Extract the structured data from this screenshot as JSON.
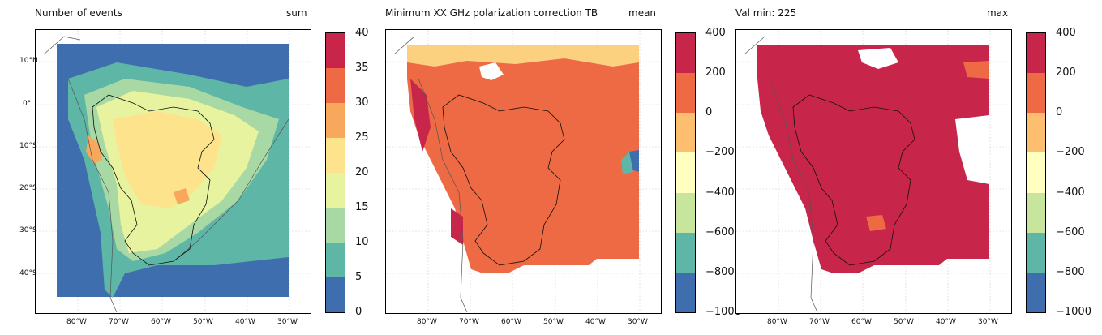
{
  "panels": [
    {
      "left_title": "Number of events",
      "right_title": "sum",
      "colorbar_ticks": [
        "40",
        "35",
        "30",
        "25",
        "20",
        "15",
        "10",
        "5",
        "0"
      ],
      "colorbar_colors": [
        "#c7264a",
        "#ee6a44",
        "#f7a85c",
        "#fde38b",
        "#e8f3a0",
        "#a8d8a3",
        "#5eb6a6",
        "#3f6eaf"
      ],
      "lat_ticks": [
        "10°N",
        "0°",
        "10°S",
        "20°S",
        "30°S",
        "40°S"
      ],
      "lon_ticks": [
        "80°W",
        "70°W",
        "60°W",
        "50°W",
        "40°W",
        "30°W"
      ]
    },
    {
      "left_title": "Minimum XX GHz polarization correction TB",
      "right_title": "mean",
      "colorbar_ticks": [
        "400",
        "200",
        "0",
        "−200",
        "−400",
        "−600",
        "−800",
        "−1000"
      ],
      "colorbar_colors": [
        "#c7264a",
        "#ee6a44",
        "#fdbf6f",
        "#ffffbf",
        "#c7e59c",
        "#5eb6a6",
        "#3f6eaf"
      ],
      "lon_ticks": [
        "80°W",
        "70°W",
        "60°W",
        "50°W",
        "40°W",
        "30°W"
      ]
    },
    {
      "left_title": "Val min: 225",
      "right_title": "max",
      "colorbar_ticks": [
        "400",
        "200",
        "0",
        "−200",
        "−400",
        "−600",
        "−800",
        "−1000"
      ],
      "colorbar_colors": [
        "#c7264a",
        "#ee6a44",
        "#fdbf6f",
        "#ffffbf",
        "#c7e59c",
        "#5eb6a6",
        "#3f6eaf"
      ],
      "lon_ticks": [
        "80°W",
        "70°W",
        "60°W",
        "50°W",
        "40°W",
        "30°W"
      ]
    }
  ]
}
